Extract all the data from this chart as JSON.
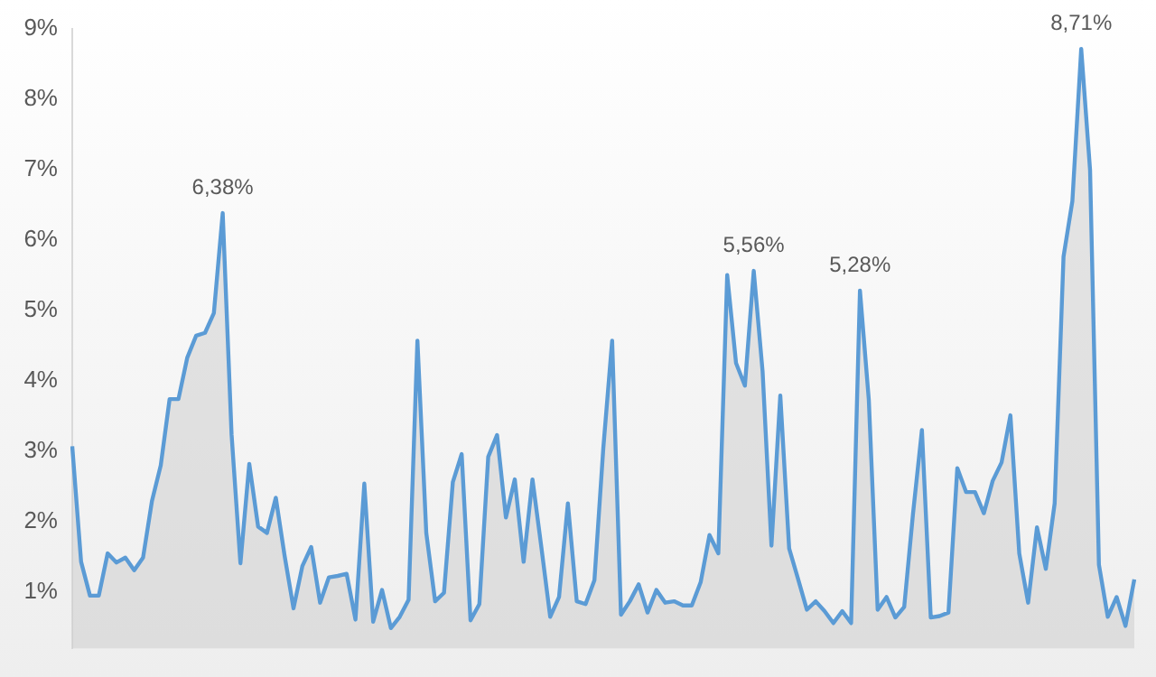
{
  "chart_data": {
    "type": "area",
    "categories": [
      null,
      null,
      null,
      null,
      null,
      null,
      null,
      null,
      null,
      null,
      null,
      null,
      null,
      null,
      null,
      null,
      null,
      null,
      null,
      null,
      null,
      null,
      null,
      null,
      null,
      null,
      null,
      null,
      null,
      null,
      null,
      null,
      null,
      null,
      null,
      null,
      null,
      null,
      null,
      null,
      null,
      null,
      null,
      null,
      null,
      null,
      null,
      null,
      null,
      null,
      null,
      null,
      null,
      null,
      null,
      null,
      null,
      null,
      null,
      null,
      null,
      null,
      null,
      null,
      null,
      null,
      null,
      null,
      null,
      null,
      null,
      null,
      null,
      null,
      null,
      null,
      null,
      null,
      null,
      null,
      null,
      null,
      null,
      null,
      null,
      null,
      null,
      null,
      null,
      null,
      null,
      null,
      null,
      null,
      null,
      null,
      null,
      null,
      null,
      null,
      null,
      null,
      null,
      null,
      null,
      null,
      null,
      null,
      null,
      null,
      null,
      null,
      null,
      null,
      null,
      null,
      null,
      null,
      null,
      null,
      null
    ],
    "series": [
      {
        "color": "#5b9bd5",
        "values": [
          3.07,
          1.43,
          0.95,
          0.95,
          1.55,
          1.42,
          1.49,
          1.31,
          1.49,
          2.29,
          2.8,
          3.74,
          3.74,
          4.33,
          4.64,
          4.68,
          4.96,
          6.38,
          3.24,
          1.41,
          2.82,
          1.93,
          1.84,
          2.34,
          1.51,
          0.77,
          1.37,
          1.64,
          0.85,
          1.21,
          1.23,
          1.26,
          0.61,
          2.54,
          0.58,
          1.03,
          0.49,
          0.65,
          0.89,
          4.57,
          1.84,
          0.87,
          0.99,
          2.56,
          2.96,
          0.6,
          0.83,
          2.92,
          3.23,
          2.06,
          2.6,
          1.43,
          2.6,
          1.64,
          0.65,
          0.93,
          2.26,
          0.87,
          0.83,
          1.17,
          3.04,
          4.57,
          0.68,
          0.87,
          1.11,
          0.71,
          1.03,
          0.85,
          0.87,
          0.81,
          0.81,
          1.14,
          1.81,
          1.55,
          5.5,
          4.25,
          3.93,
          5.56,
          4.13,
          1.66,
          3.79,
          1.62,
          1.19,
          0.75,
          0.87,
          0.73,
          0.56,
          0.73,
          0.56,
          5.28,
          3.73,
          0.75,
          0.93,
          0.64,
          0.79,
          2.12,
          3.3,
          0.64,
          0.66,
          0.71,
          2.76,
          2.42,
          2.42,
          2.12,
          2.58,
          2.84,
          3.51,
          1.55,
          0.85,
          1.92,
          1.33,
          2.26,
          5.76,
          6.55,
          8.71,
          6.99,
          1.39,
          0.65,
          0.93,
          0.52,
          1.18
        ],
        "value_labels": [
          null,
          null,
          null,
          null,
          null,
          null,
          null,
          null,
          null,
          null,
          null,
          null,
          null,
          null,
          null,
          null,
          null,
          "6,38%",
          null,
          null,
          null,
          null,
          null,
          null,
          null,
          null,
          null,
          null,
          null,
          null,
          null,
          null,
          null,
          null,
          null,
          null,
          null,
          null,
          null,
          null,
          null,
          null,
          null,
          null,
          null,
          null,
          null,
          null,
          null,
          null,
          null,
          null,
          null,
          null,
          null,
          null,
          null,
          null,
          null,
          null,
          null,
          null,
          null,
          null,
          null,
          null,
          null,
          null,
          null,
          null,
          null,
          null,
          null,
          null,
          null,
          null,
          null,
          "5,56%",
          null,
          null,
          null,
          null,
          null,
          null,
          null,
          null,
          null,
          null,
          null,
          "5,28%",
          null,
          null,
          null,
          null,
          null,
          null,
          null,
          null,
          null,
          null,
          null,
          null,
          null,
          null,
          null,
          null,
          null,
          null,
          null,
          null,
          null,
          null,
          null,
          null,
          "8,71%",
          null,
          null,
          null,
          null,
          null,
          null
        ]
      }
    ],
    "ylim": [
      0.2,
      9
    ],
    "yticks": [
      {
        "value": 1,
        "label": "1%"
      },
      {
        "value": 2,
        "label": "2%"
      },
      {
        "value": 3,
        "label": "3%"
      },
      {
        "value": 4,
        "label": "4%"
      },
      {
        "value": 5,
        "label": "5%"
      },
      {
        "value": 6,
        "label": "6%"
      },
      {
        "value": 7,
        "label": "7%"
      },
      {
        "value": 8,
        "label": "8%"
      },
      {
        "value": 9,
        "label": "9%"
      }
    ],
    "tick_labels": "y",
    "legend": false,
    "marker": "none"
  }
}
